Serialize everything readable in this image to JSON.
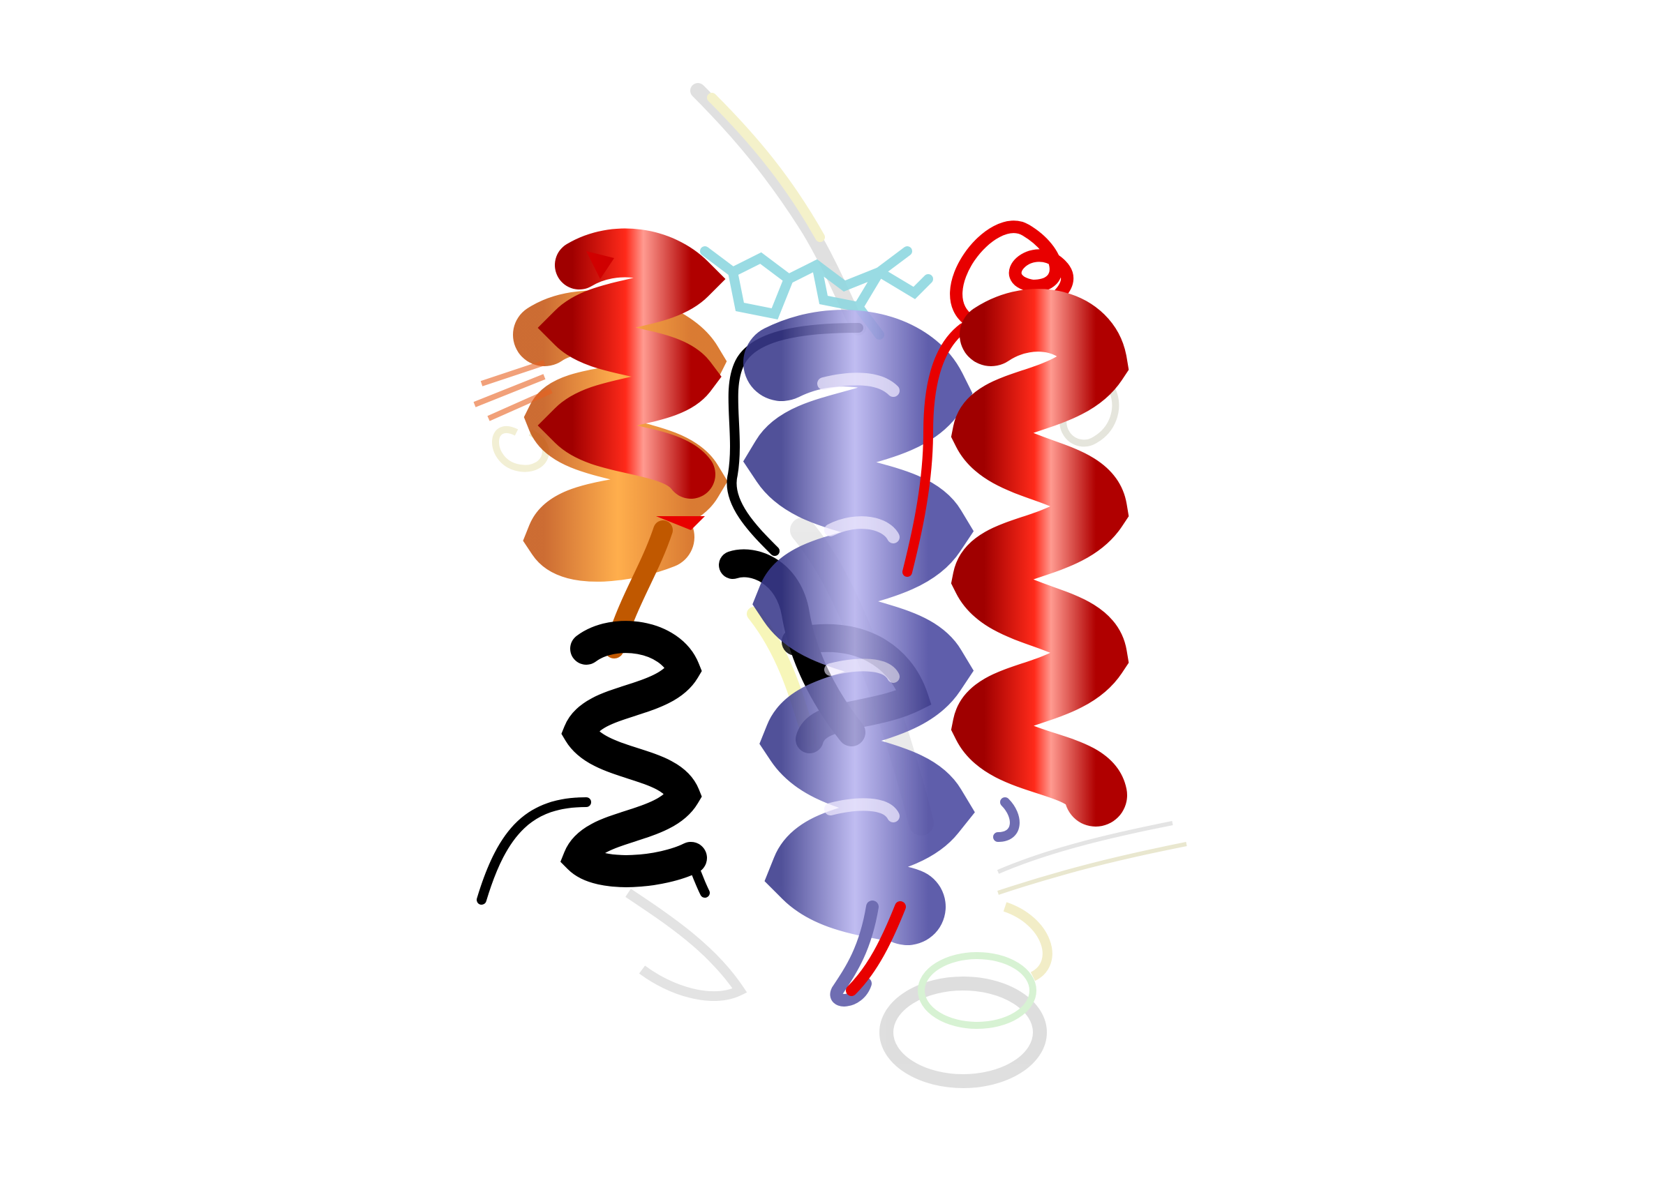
{
  "image": {
    "subject": "protein-structure-ensemble-cartoon",
    "background_color": "#ffffff"
  },
  "colors": {
    "orange_helix": "#f07810",
    "red_helix": "#e80000",
    "blue_helix": "#6e6cc0",
    "black_helix": "#000000",
    "ligand_cyan": "#8fd8e0",
    "ghost_gray": "#b8b8b8",
    "ghost_yellow": "#e8e49a",
    "ghost_green": "#a8e0a0"
  }
}
